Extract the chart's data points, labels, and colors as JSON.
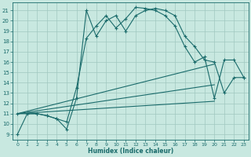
{
  "xlabel": "Humidex (Indice chaleur)",
  "bg_color": "#c8e8e0",
  "line_color": "#1a6b6b",
  "grid_color": "#a0c8c0",
  "xlim": [
    -0.5,
    23.5
  ],
  "ylim": [
    8.5,
    21.8
  ],
  "yticks": [
    9,
    10,
    11,
    12,
    13,
    14,
    15,
    16,
    17,
    18,
    19,
    20,
    21
  ],
  "xticks": [
    0,
    1,
    2,
    3,
    4,
    5,
    6,
    7,
    8,
    9,
    10,
    11,
    12,
    13,
    14,
    15,
    16,
    17,
    18,
    19,
    20,
    21,
    22,
    23
  ],
  "curve1_x": [
    0,
    1,
    2,
    3,
    4,
    5,
    6,
    7,
    8,
    9,
    10,
    11,
    12,
    13,
    14,
    15,
    16,
    17,
    18,
    19,
    20,
    21,
    22,
    23
  ],
  "curve1_y": [
    9,
    11,
    11,
    10.8,
    10.5,
    9.5,
    12.5,
    21.0,
    18.5,
    20.0,
    20.5,
    19.0,
    20.5,
    21.0,
    21.2,
    21.0,
    20.5,
    18.5,
    17.5,
    16.2,
    16.0,
    13.0,
    14.5,
    14.5
  ],
  "curve2_x": [
    0,
    2,
    3,
    4,
    5,
    6,
    7,
    8,
    9,
    10,
    11,
    12,
    13,
    14,
    15,
    16,
    17,
    18,
    19,
    20,
    21,
    22,
    23
  ],
  "curve2_y": [
    11,
    11,
    10.8,
    10.5,
    10.2,
    13.5,
    18.3,
    19.5,
    20.5,
    19.3,
    20.2,
    21.3,
    21.2,
    21.0,
    20.5,
    19.5,
    17.5,
    16.0,
    16.5,
    12.5,
    16.2,
    16.2,
    14.5
  ],
  "line1_x": [
    0,
    20
  ],
  "line1_y": [
    11.0,
    15.8
  ],
  "line2_x": [
    0,
    20
  ],
  "line2_y": [
    11.0,
    13.8
  ],
  "line3_x": [
    0,
    20
  ],
  "line3_y": [
    11.0,
    12.2
  ]
}
